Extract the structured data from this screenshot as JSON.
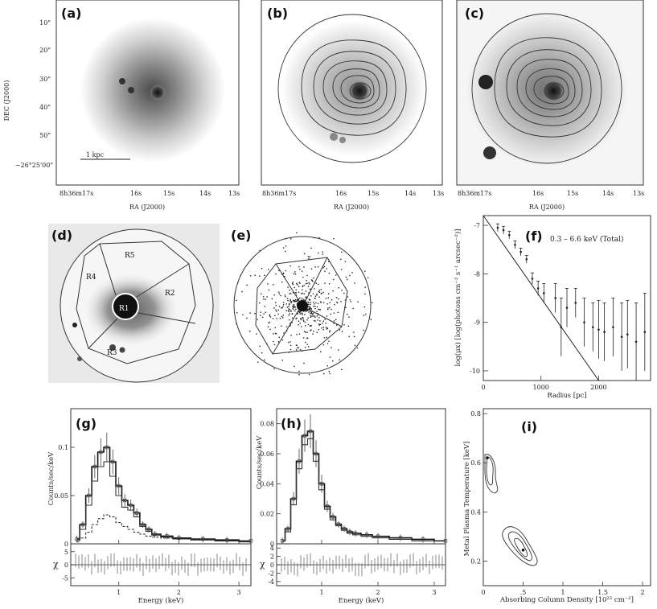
{
  "panels": {
    "a": {
      "label": "(a)",
      "scale_bar": "1 kpc"
    },
    "b": {
      "label": "(b)"
    },
    "c": {
      "label": "(c)"
    },
    "d": {
      "label": "(d)",
      "regions": [
        "R1",
        "R2",
        "R3",
        "R4",
        "R5"
      ]
    },
    "e": {
      "label": "(e)"
    },
    "f": {
      "label": "(f)",
      "annotation": "0.3 – 6.6 keV (Total)"
    },
    "g": {
      "label": "(g)"
    },
    "h": {
      "label": "(h)"
    },
    "i": {
      "label": "(i)"
    }
  },
  "sky_axes": {
    "ra_label": "RA (J2000)",
    "dec_label": "DEC (J2000)",
    "ra_ticks": [
      "8h36m17s",
      "16s",
      "15s",
      "14s",
      "13s"
    ],
    "dec_ticks": [
      "10\"",
      "20\"",
      "30\"",
      "40\"",
      "50\"",
      "−26°25'00\""
    ]
  },
  "chart_data": [
    {
      "id": "f",
      "type": "scatter",
      "xlabel": "Radius [pc]",
      "ylabel": "log(μx) [log(photons cm⁻² s⁻¹ arcsec⁻²)]",
      "xlim": [
        0,
        2900
      ],
      "ylim": [
        -10.2,
        -6.8
      ],
      "xticks": [
        "0",
        "1000",
        "2000"
      ],
      "yticks": [
        "-7",
        "-8",
        "-9",
        "-10"
      ],
      "points": [
        {
          "x": 250,
          "y": -7.05,
          "err": 0.08
        },
        {
          "x": 350,
          "y": -7.1,
          "err": 0.08
        },
        {
          "x": 450,
          "y": -7.2,
          "err": 0.08
        },
        {
          "x": 550,
          "y": -7.4,
          "err": 0.08
        },
        {
          "x": 650,
          "y": -7.55,
          "err": 0.08
        },
        {
          "x": 750,
          "y": -7.7,
          "err": 0.08
        },
        {
          "x": 850,
          "y": -8.1,
          "err": 0.12
        },
        {
          "x": 950,
          "y": -8.3,
          "err": 0.15
        },
        {
          "x": 1050,
          "y": -8.4,
          "err": 0.2
        },
        {
          "x": 1250,
          "y": -8.5,
          "err": 0.3
        },
        {
          "x": 1350,
          "y": -9.1,
          "err": 0.6
        },
        {
          "x": 1450,
          "y": -8.7,
          "err": 0.4
        },
        {
          "x": 1600,
          "y": -8.6,
          "err": 0.3
        },
        {
          "x": 1750,
          "y": -9.0,
          "err": 0.5
        },
        {
          "x": 1900,
          "y": -9.1,
          "err": 0.5
        },
        {
          "x": 2000,
          "y": -9.15,
          "err": 0.6
        },
        {
          "x": 2100,
          "y": -9.2,
          "err": 0.6
        },
        {
          "x": 2250,
          "y": -9.1,
          "err": 0.6
        },
        {
          "x": 2400,
          "y": -9.3,
          "err": 0.7
        },
        {
          "x": 2500,
          "y": -9.25,
          "err": 0.7
        },
        {
          "x": 2650,
          "y": -9.4,
          "err": 0.8
        },
        {
          "x": 2800,
          "y": -9.2,
          "err": 0.8
        }
      ],
      "model_line": [
        [
          0,
          -6.5
        ],
        [
          2000,
          -10.2
        ]
      ]
    },
    {
      "id": "g",
      "type": "line",
      "xlabel": "Energy (keV)",
      "ylabel": "Counts/sec/keV",
      "residual_label": "χ",
      "xlim": [
        0.2,
        3.2
      ],
      "ylim": [
        0,
        0.14
      ],
      "xticks": [
        "1",
        "2",
        "3"
      ],
      "yticks": [
        "0",
        "0.05",
        "0.1"
      ],
      "residual_ticks": [
        "5",
        "0",
        "-5"
      ],
      "series": [
        {
          "x": [
            0.3,
            0.4,
            0.5,
            0.6,
            0.7,
            0.8,
            0.9,
            1.0,
            1.1,
            1.2,
            1.3,
            1.4,
            1.5,
            1.6,
            1.8,
            2.0,
            2.4,
            2.8,
            3.2
          ],
          "values": [
            0.005,
            0.02,
            0.05,
            0.08,
            0.095,
            0.1,
            0.085,
            0.06,
            0.045,
            0.04,
            0.032,
            0.02,
            0.015,
            0.01,
            0.008,
            0.006,
            0.005,
            0.004,
            0.003
          ]
        },
        {
          "x": [
            0.3,
            0.4,
            0.5,
            0.6,
            0.7,
            0.8,
            0.9,
            1.0,
            1.1,
            1.2,
            1.3,
            1.4,
            1.5,
            1.6,
            1.8,
            2.0,
            2.4,
            2.8,
            3.2
          ],
          "values": [
            0.004,
            0.015,
            0.04,
            0.065,
            0.08,
            0.085,
            0.07,
            0.05,
            0.038,
            0.035,
            0.028,
            0.018,
            0.013,
            0.009,
            0.007,
            0.005,
            0.004,
            0.003,
            0.002
          ]
        },
        {
          "x": [
            0.3,
            0.4,
            0.5,
            0.6,
            0.7,
            0.8,
            0.9,
            1.0,
            1.1,
            1.2,
            1.3,
            1.4,
            1.5,
            1.6,
            1.8,
            2.0,
            2.4,
            2.8,
            3.2
          ],
          "values": [
            0.002,
            0.006,
            0.012,
            0.02,
            0.026,
            0.03,
            0.028,
            0.022,
            0.018,
            0.015,
            0.012,
            0.01,
            0.008,
            0.007,
            0.006,
            0.005,
            0.004,
            0.003,
            0.003
          ]
        }
      ]
    },
    {
      "id": "h",
      "type": "line",
      "xlabel": "Energy (keV)",
      "ylabel": "Counts/sec/keV",
      "residual_label": "χ",
      "xlim": [
        0.2,
        3.2
      ],
      "ylim": [
        0,
        0.09
      ],
      "xticks": [
        "1",
        "2",
        "3"
      ],
      "yticks": [
        "0",
        "0.02",
        "0.04",
        "0.06",
        "0.08"
      ],
      "residual_ticks": [
        "4",
        "2",
        "0",
        "-2",
        "-4"
      ],
      "series": [
        {
          "x": [
            0.3,
            0.4,
            0.5,
            0.6,
            0.7,
            0.8,
            0.9,
            1.0,
            1.1,
            1.2,
            1.3,
            1.4,
            1.5,
            1.6,
            1.8,
            2.0,
            2.4,
            2.8,
            3.2
          ],
          "values": [
            0.002,
            0.01,
            0.03,
            0.055,
            0.072,
            0.075,
            0.06,
            0.04,
            0.025,
            0.018,
            0.013,
            0.01,
            0.008,
            0.007,
            0.006,
            0.005,
            0.004,
            0.003,
            0.002
          ]
        },
        {
          "x": [
            0.3,
            0.4,
            0.5,
            0.6,
            0.7,
            0.8,
            0.9,
            1.0,
            1.1,
            1.2,
            1.3,
            1.4,
            1.5,
            1.6,
            1.8,
            2.0,
            2.4,
            2.8,
            3.2
          ],
          "values": [
            0.002,
            0.008,
            0.026,
            0.05,
            0.066,
            0.07,
            0.055,
            0.036,
            0.023,
            0.016,
            0.012,
            0.009,
            0.007,
            0.006,
            0.005,
            0.004,
            0.003,
            0.002,
            0.002
          ]
        }
      ]
    },
    {
      "id": "i",
      "type": "scatter",
      "xlabel": "Absorbing Column Density [10²² cm⁻²]",
      "ylabel": "Metal Plasma Temperature [keV]",
      "xlim": [
        0,
        2.1
      ],
      "ylim": [
        0.1,
        0.82
      ],
      "xticks": [
        "0",
        ".5",
        "1",
        "1.5",
        "2"
      ],
      "yticks": [
        "0.2",
        "0.4",
        "0.6",
        "0.8"
      ],
      "best_fits": [
        {
          "x": 0.05,
          "y": 0.62
        },
        {
          "x": 0.5,
          "y": 0.245
        }
      ]
    }
  ]
}
